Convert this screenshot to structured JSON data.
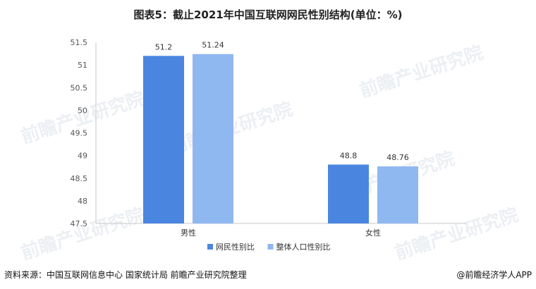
{
  "title": "图表5：截止2021年中国互联网网民性别结构(单位：%)",
  "source": "资料来源：中国互联网信息中心 国家统计局 前瞻产业研究院整理",
  "brand": "@前瞻经济学人APP",
  "watermark": "前瞻产业研究院",
  "colors": {
    "series1": "#4a86e0",
    "series2": "#8fb8f0"
  },
  "chart_data": {
    "type": "bar",
    "title": "图表5：截止2021年中国互联网网民性别结构(单位：%)",
    "xlabel": "",
    "ylabel": "",
    "categories": [
      "男性",
      "女性"
    ],
    "series": [
      {
        "name": "网民性别比",
        "values": [
          51.2,
          48.8
        ]
      },
      {
        "name": "整体人口性别比",
        "values": [
          51.24,
          48.76
        ]
      }
    ],
    "ylim": [
      47.5,
      51.5
    ],
    "yticks": [
      "47.5",
      "48",
      "48.5",
      "49",
      "49.5",
      "50",
      "50.5",
      "51",
      "51.5"
    ],
    "legend": "bottom",
    "grid": false
  }
}
